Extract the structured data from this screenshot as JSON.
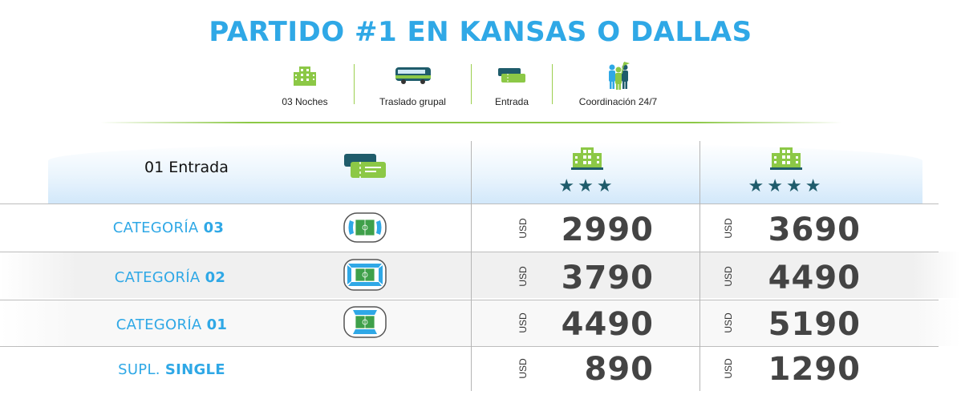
{
  "title": "PARTIDO #1 EN KANSAS O DALLAS",
  "features": [
    {
      "icon": "hotel-icon",
      "label": "03 Noches"
    },
    {
      "icon": "bus-icon",
      "label": "Traslado grupal"
    },
    {
      "icon": "ticket-icon",
      "label": "Entrada"
    },
    {
      "icon": "group-icon",
      "label": "Coordinación 24/7"
    }
  ],
  "header": {
    "entrada_label": "01 Entrada",
    "hotel3_stars": "★★★",
    "hotel4_stars": "★★★★"
  },
  "rows": [
    {
      "category_prefix": "CATEGORÍA ",
      "category_bold": "03",
      "currency": "USD",
      "price_3": "2990",
      "price_4": "3690"
    },
    {
      "category_prefix": "CATEGORÍA ",
      "category_bold": "02",
      "currency": "USD",
      "price_3": "3790",
      "price_4": "4490"
    },
    {
      "category_prefix": "CATEGORÍA ",
      "category_bold": "01",
      "currency": "USD",
      "price_3": "4490",
      "price_4": "5190"
    },
    {
      "category_prefix": "SUPL. ",
      "category_bold": "SINGLE",
      "currency": "USD",
      "price_3": "890",
      "price_4": "1290"
    }
  ],
  "colors": {
    "accent_blue": "#2fa8e6",
    "green": "#8cc846",
    "teal": "#1f5c6b"
  }
}
